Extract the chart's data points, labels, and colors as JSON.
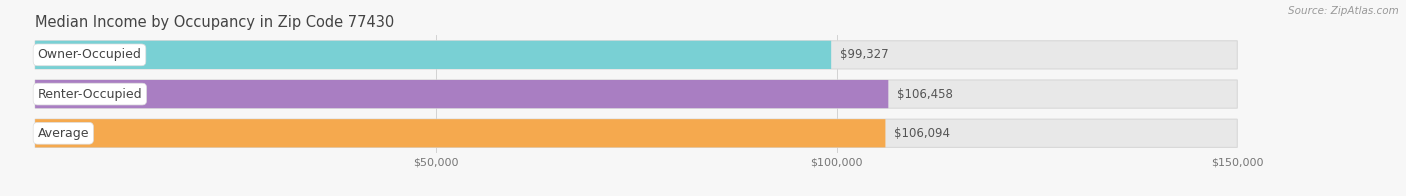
{
  "title": "Median Income by Occupancy in Zip Code 77430",
  "source_text": "Source: ZipAtlas.com",
  "categories": [
    "Owner-Occupied",
    "Renter-Occupied",
    "Average"
  ],
  "values": [
    99327,
    106458,
    106094
  ],
  "bar_colors": [
    "#79d0d4",
    "#a97ec2",
    "#f5a94e"
  ],
  "value_labels": [
    "$99,327",
    "$106,458",
    "$106,094"
  ],
  "xlim": [
    0,
    150000
  ],
  "xticks": [
    50000,
    100000,
    150000
  ],
  "xticklabels": [
    "$50,000",
    "$100,000",
    "$150,000"
  ],
  "background_color": "#f7f7f7",
  "bar_bg_color": "#e8e8e8",
  "bar_bg_border": "#d8d8d8",
  "title_fontsize": 10.5,
  "source_fontsize": 7.5,
  "label_fontsize": 9,
  "value_fontsize": 8.5,
  "tick_fontsize": 8,
  "bar_height": 0.72,
  "figsize": [
    14.06,
    1.96
  ],
  "dpi": 100
}
